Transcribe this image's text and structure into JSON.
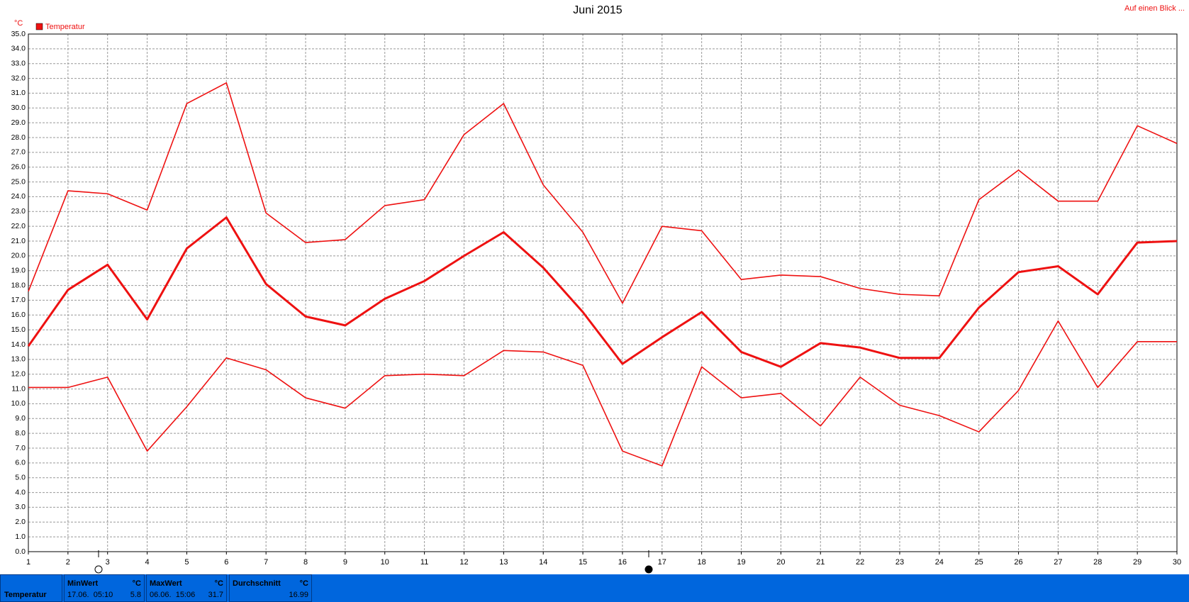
{
  "chart_data": {
    "type": "line",
    "title": "Juni 2015",
    "y_unit": "°C",
    "legend": "Temperatur",
    "link": "Auf einen Blick ...",
    "x": [
      1,
      2,
      3,
      4,
      5,
      6,
      7,
      8,
      9,
      10,
      11,
      12,
      13,
      14,
      15,
      16,
      17,
      18,
      19,
      20,
      21,
      22,
      23,
      24,
      25,
      26,
      27,
      28,
      29,
      30
    ],
    "xlim": [
      1,
      30
    ],
    "xticks": [
      1,
      2,
      3,
      4,
      5,
      6,
      7,
      8,
      9,
      10,
      11,
      12,
      13,
      14,
      15,
      16,
      17,
      18,
      19,
      20,
      21,
      22,
      23,
      24,
      25,
      26,
      27,
      28,
      29,
      30
    ],
    "ylim": [
      0,
      35
    ],
    "yticks": [
      {
        "value": 0,
        "label": "0.0"
      },
      {
        "value": 1,
        "label": "1.0"
      },
      {
        "value": 2,
        "label": "2.0"
      },
      {
        "value": 3,
        "label": "3.0"
      },
      {
        "value": 4,
        "label": "4.0"
      },
      {
        "value": 5,
        "label": "5.0"
      },
      {
        "value": 6,
        "label": "6.0"
      },
      {
        "value": 7,
        "label": "7.0"
      },
      {
        "value": 8,
        "label": "8.0"
      },
      {
        "value": 9,
        "label": "9.0"
      },
      {
        "value": 10,
        "label": "10.0"
      },
      {
        "value": 11,
        "label": "11.0"
      },
      {
        "value": 12,
        "label": "12.0"
      },
      {
        "value": 13,
        "label": "13.0"
      },
      {
        "value": 14,
        "label": "14.0"
      },
      {
        "value": 15,
        "label": "15.0"
      },
      {
        "value": 16,
        "label": "16.0"
      },
      {
        "value": 17,
        "label": "17.0"
      },
      {
        "value": 18,
        "label": "18.0"
      },
      {
        "value": 19,
        "label": "19.0"
      },
      {
        "value": 20,
        "label": "20.0"
      },
      {
        "value": 21,
        "label": "21.0"
      },
      {
        "value": 22,
        "label": "22.0"
      },
      {
        "value": 23,
        "label": "23.0"
      },
      {
        "value": 24,
        "label": "24.0"
      },
      {
        "value": 25,
        "label": "25.0"
      },
      {
        "value": 26,
        "label": "26.0"
      },
      {
        "value": 27,
        "label": "27.0"
      },
      {
        "value": 28,
        "label": "28.0"
      },
      {
        "value": 29,
        "label": "29.0"
      },
      {
        "value": 30,
        "label": "30.0"
      },
      {
        "value": 31,
        "label": "31.0"
      },
      {
        "value": 32,
        "label": "32.0"
      },
      {
        "value": 33,
        "label": "33.0"
      },
      {
        "value": 34,
        "label": "34.0"
      },
      {
        "value": 35,
        "label": "35.0"
      }
    ],
    "grid": true,
    "series": [
      {
        "color": "#ee1111",
        "width": 1.6,
        "values": [
          17.6,
          24.4,
          24.2,
          23.1,
          30.3,
          31.7,
          22.9,
          20.9,
          21.1,
          23.4,
          23.8,
          28.2,
          30.3,
          24.8,
          21.6,
          16.8,
          22.0,
          21.7,
          18.4,
          18.7,
          18.6,
          17.8,
          17.4,
          17.3,
          23.8,
          25.8,
          23.7,
          23.7,
          28.8,
          27.6
        ]
      },
      {
        "color": "#ee1111",
        "width": 3,
        "values": [
          13.9,
          17.7,
          19.4,
          15.7,
          20.5,
          22.6,
          18.1,
          15.9,
          15.3,
          17.1,
          18.3,
          20.0,
          21.6,
          19.2,
          16.2,
          12.7,
          14.5,
          16.2,
          13.5,
          12.5,
          14.1,
          13.8,
          13.1,
          13.1,
          16.5,
          18.9,
          19.3,
          17.4,
          20.9,
          21.0
        ]
      },
      {
        "color": "#ee1111",
        "width": 1.6,
        "values": [
          11.1,
          11.1,
          11.8,
          6.8,
          9.8,
          13.1,
          12.3,
          10.4,
          9.7,
          11.9,
          12.0,
          11.9,
          13.6,
          13.5,
          12.6,
          6.8,
          5.8,
          12.5,
          10.4,
          10.7,
          8.5,
          11.8,
          9.9,
          9.2,
          8.1,
          10.9,
          15.6,
          11.1,
          14.2,
          14.2
        ]
      }
    ]
  },
  "summary": {
    "row_label": "Temperatur",
    "columns": [
      {
        "title": "MinWert",
        "unit": "°C",
        "time": "17.06.  05:10",
        "value": 5.8
      },
      {
        "title": "MaxWert",
        "unit": "°C",
        "time": "06.06.  15:06",
        "value": 31.7
      },
      {
        "title": "Durchschnitt",
        "unit": "°C",
        "value": 16.99
      }
    ]
  }
}
